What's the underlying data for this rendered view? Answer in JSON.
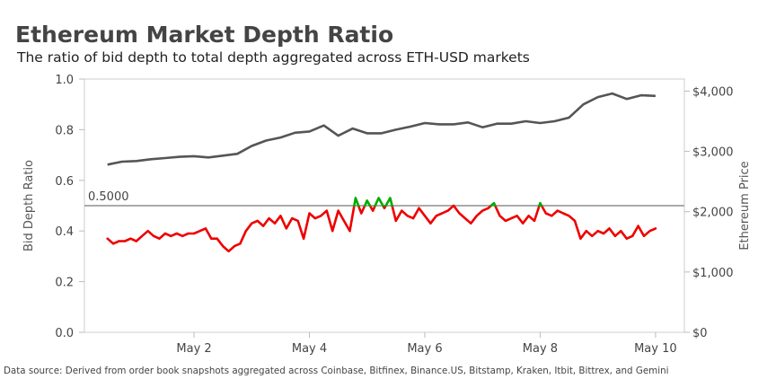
{
  "chart_data": {
    "type": "line",
    "title": "Ethereum Market Depth Ratio",
    "subtitle": "The ratio of bid depth to total depth aggregated across ETH-USD markets",
    "source": "Data source: Derived from order book snapshots aggregated across Coinbase, Bitfinex, Binance.US, Bitstamp, Kraken, Itbit, Bittrex, and Gemini",
    "ylabel_left": "Bid Depth Ratio",
    "ylabel_right": "Ethereum Price",
    "ylim_left": [
      0,
      1.0
    ],
    "ylim_right": [
      0,
      4200
    ],
    "xlim": [
      0.1,
      10.5
    ],
    "yticks_left": [
      {
        "value": 0.0,
        "label": "0.0"
      },
      {
        "value": 0.2,
        "label": "0.2"
      },
      {
        "value": 0.4,
        "label": "0.4"
      },
      {
        "value": 0.6,
        "label": "0.6"
      },
      {
        "value": 0.8,
        "label": "0.8"
      },
      {
        "value": 1.0,
        "label": "1.0"
      }
    ],
    "yticks_right": [
      {
        "value": 0,
        "label": "$0"
      },
      {
        "value": 1000,
        "label": "$1,000"
      },
      {
        "value": 2000,
        "label": "$2,000"
      },
      {
        "value": 3000,
        "label": "$3,000"
      },
      {
        "value": 4000,
        "label": "$4,000"
      }
    ],
    "xticks": [
      {
        "value": 2,
        "label": "May 2"
      },
      {
        "value": 4,
        "label": "May 4"
      },
      {
        "value": 6,
        "label": "May 6"
      },
      {
        "value": 8,
        "label": "May 8"
      },
      {
        "value": 10,
        "label": "May 10"
      }
    ],
    "reference_line": {
      "value": 0.5,
      "label": "0.5000"
    },
    "colors": {
      "price": "#555555",
      "below": "#ee0000",
      "above": "#00aa00",
      "ref": "#aaaaaa",
      "axis": "#cccccc"
    },
    "series": [
      {
        "name": "Ethereum Price",
        "axis": "right",
        "x": [
          0.5,
          0.75,
          1.0,
          1.25,
          1.5,
          1.75,
          2.0,
          2.25,
          2.5,
          2.75,
          3.0,
          3.25,
          3.5,
          3.75,
          4.0,
          4.25,
          4.5,
          4.75,
          5.0,
          5.25,
          5.5,
          5.75,
          6.0,
          6.25,
          6.5,
          6.75,
          7.0,
          7.25,
          7.5,
          7.75,
          8.0,
          8.25,
          8.5,
          8.75,
          9.0,
          9.25,
          9.5,
          9.75,
          10.0
        ],
        "y": [
          2780,
          2830,
          2840,
          2870,
          2890,
          2910,
          2920,
          2900,
          2930,
          2960,
          3090,
          3180,
          3230,
          3310,
          3330,
          3430,
          3260,
          3380,
          3300,
          3300,
          3360,
          3410,
          3470,
          3450,
          3450,
          3480,
          3400,
          3460,
          3460,
          3500,
          3470,
          3500,
          3560,
          3780,
          3900,
          3960,
          3870,
          3930,
          3920
        ]
      },
      {
        "name": "Bid Depth Ratio",
        "axis": "left",
        "x": [
          0.5,
          0.6,
          0.7,
          0.8,
          0.9,
          1.0,
          1.1,
          1.2,
          1.3,
          1.4,
          1.5,
          1.6,
          1.7,
          1.8,
          1.9,
          2.0,
          2.1,
          2.2,
          2.3,
          2.4,
          2.5,
          2.6,
          2.7,
          2.8,
          2.9,
          3.0,
          3.1,
          3.2,
          3.3,
          3.4,
          3.5,
          3.6,
          3.7,
          3.8,
          3.9,
          4.0,
          4.1,
          4.2,
          4.3,
          4.4,
          4.5,
          4.6,
          4.7,
          4.8,
          4.9,
          5.0,
          5.1,
          5.2,
          5.3,
          5.4,
          5.5,
          5.6,
          5.7,
          5.8,
          5.9,
          6.0,
          6.1,
          6.2,
          6.3,
          6.4,
          6.5,
          6.6,
          6.7,
          6.8,
          6.9,
          7.0,
          7.1,
          7.2,
          7.3,
          7.4,
          7.5,
          7.6,
          7.7,
          7.8,
          7.9,
          8.0,
          8.1,
          8.2,
          8.3,
          8.4,
          8.5,
          8.6,
          8.7,
          8.8,
          8.9,
          9.0,
          9.1,
          9.2,
          9.3,
          9.4,
          9.5,
          9.6,
          9.7,
          9.8,
          9.9,
          10.0
        ],
        "y": [
          0.37,
          0.35,
          0.36,
          0.36,
          0.37,
          0.36,
          0.38,
          0.4,
          0.38,
          0.37,
          0.39,
          0.38,
          0.39,
          0.38,
          0.39,
          0.39,
          0.4,
          0.41,
          0.37,
          0.37,
          0.34,
          0.32,
          0.34,
          0.35,
          0.4,
          0.43,
          0.44,
          0.42,
          0.45,
          0.43,
          0.46,
          0.41,
          0.45,
          0.44,
          0.37,
          0.47,
          0.45,
          0.46,
          0.48,
          0.4,
          0.48,
          0.44,
          0.4,
          0.53,
          0.47,
          0.52,
          0.48,
          0.53,
          0.49,
          0.53,
          0.44,
          0.48,
          0.46,
          0.45,
          0.49,
          0.46,
          0.43,
          0.46,
          0.47,
          0.48,
          0.5,
          0.47,
          0.45,
          0.43,
          0.46,
          0.48,
          0.49,
          0.51,
          0.46,
          0.44,
          0.45,
          0.46,
          0.43,
          0.46,
          0.44,
          0.51,
          0.47,
          0.46,
          0.48,
          0.47,
          0.46,
          0.44,
          0.37,
          0.4,
          0.38,
          0.4,
          0.39,
          0.41,
          0.38,
          0.4,
          0.37,
          0.38,
          0.42,
          0.38,
          0.4,
          0.41
        ]
      }
    ]
  }
}
